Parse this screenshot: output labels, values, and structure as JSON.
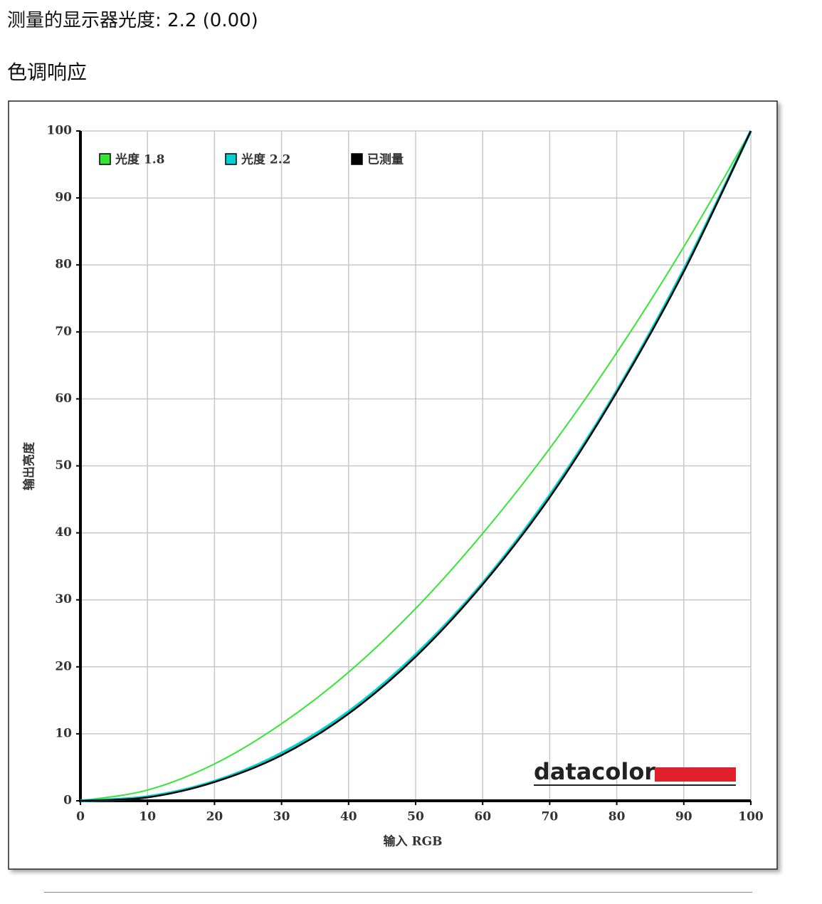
{
  "header": {
    "gamma_line": "测量的显示器光度: 2.2 (0.00)",
    "section_title": "色调响应"
  },
  "chart_data": {
    "type": "line",
    "x_label": "输入 RGB",
    "y_label": "输出亮度",
    "logo": "datacolor",
    "x": [
      0,
      10,
      20,
      30,
      40,
      50,
      60,
      70,
      80,
      90,
      100
    ],
    "series": [
      {
        "name": "光度 1.8",
        "color": "#33e633",
        "values": [
          0,
          1.6,
          5.5,
          11.5,
          19.2,
          28.7,
          39.9,
          52.6,
          66.9,
          82.7,
          100
        ]
      },
      {
        "name": "光度 2.2",
        "color": "#00d0d0",
        "values": [
          0,
          0.6,
          2.9,
          7.1,
          13.3,
          21.8,
          32.5,
          45.6,
          61.2,
          79.3,
          100
        ]
      },
      {
        "name": "已测量",
        "color": "#000000",
        "values": [
          0,
          0.5,
          2.8,
          6.8,
          13,
          21.5,
          32.3,
          45.3,
          61,
          79,
          100
        ]
      }
    ],
    "xlim": [
      0,
      100
    ],
    "ylim": [
      0,
      100
    ],
    "xticks": [
      0,
      10,
      20,
      30,
      40,
      50,
      60,
      70,
      80,
      90,
      100
    ],
    "yticks": [
      0,
      10,
      20,
      30,
      40,
      50,
      60,
      70,
      80,
      90,
      100
    ],
    "grid": true,
    "legend": "top-left"
  }
}
